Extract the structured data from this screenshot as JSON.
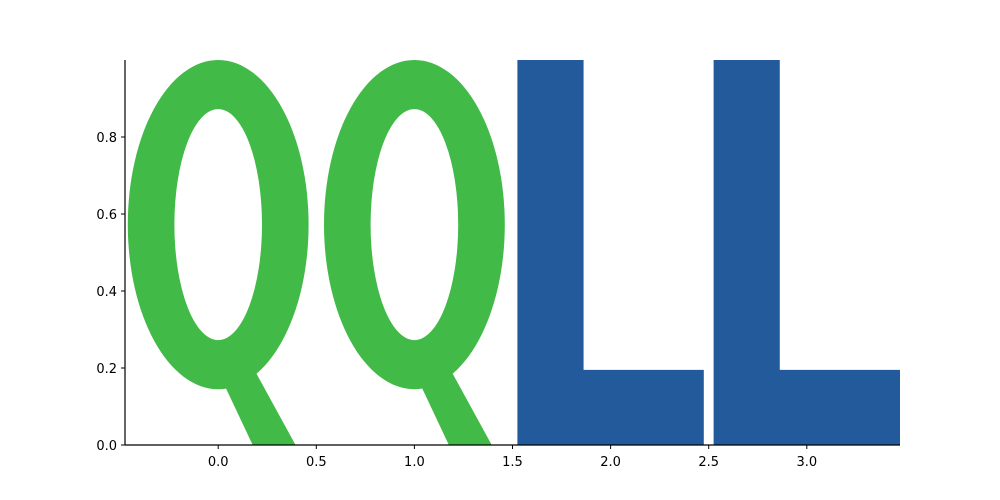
{
  "chart_data": {
    "type": "bar",
    "title": "",
    "xlabel": "",
    "ylabel": "",
    "x": [
      0,
      1,
      2,
      3
    ],
    "values": [
      1,
      1,
      1,
      1
    ],
    "glyphs": [
      "Q",
      "Q",
      "L",
      "L"
    ],
    "colors": [
      "#41BA47",
      "#41BA47",
      "#225A9C",
      "#225A9C"
    ],
    "xlim": [
      -0.475,
      3.475
    ],
    "ylim": [
      0,
      1
    ],
    "xticks": [
      0.0,
      0.5,
      1.0,
      1.5,
      2.0,
      2.5,
      3.0
    ],
    "xtick_labels": [
      "0.0",
      "0.5",
      "1.0",
      "1.5",
      "2.0",
      "2.5",
      "3.0"
    ],
    "yticks": [
      0.0,
      0.2,
      0.4,
      0.6,
      0.8
    ],
    "ytick_labels": [
      "0.0",
      "0.2",
      "0.4",
      "0.6",
      "0.8"
    ],
    "grid": false,
    "spines": [
      "left",
      "bottom"
    ]
  }
}
